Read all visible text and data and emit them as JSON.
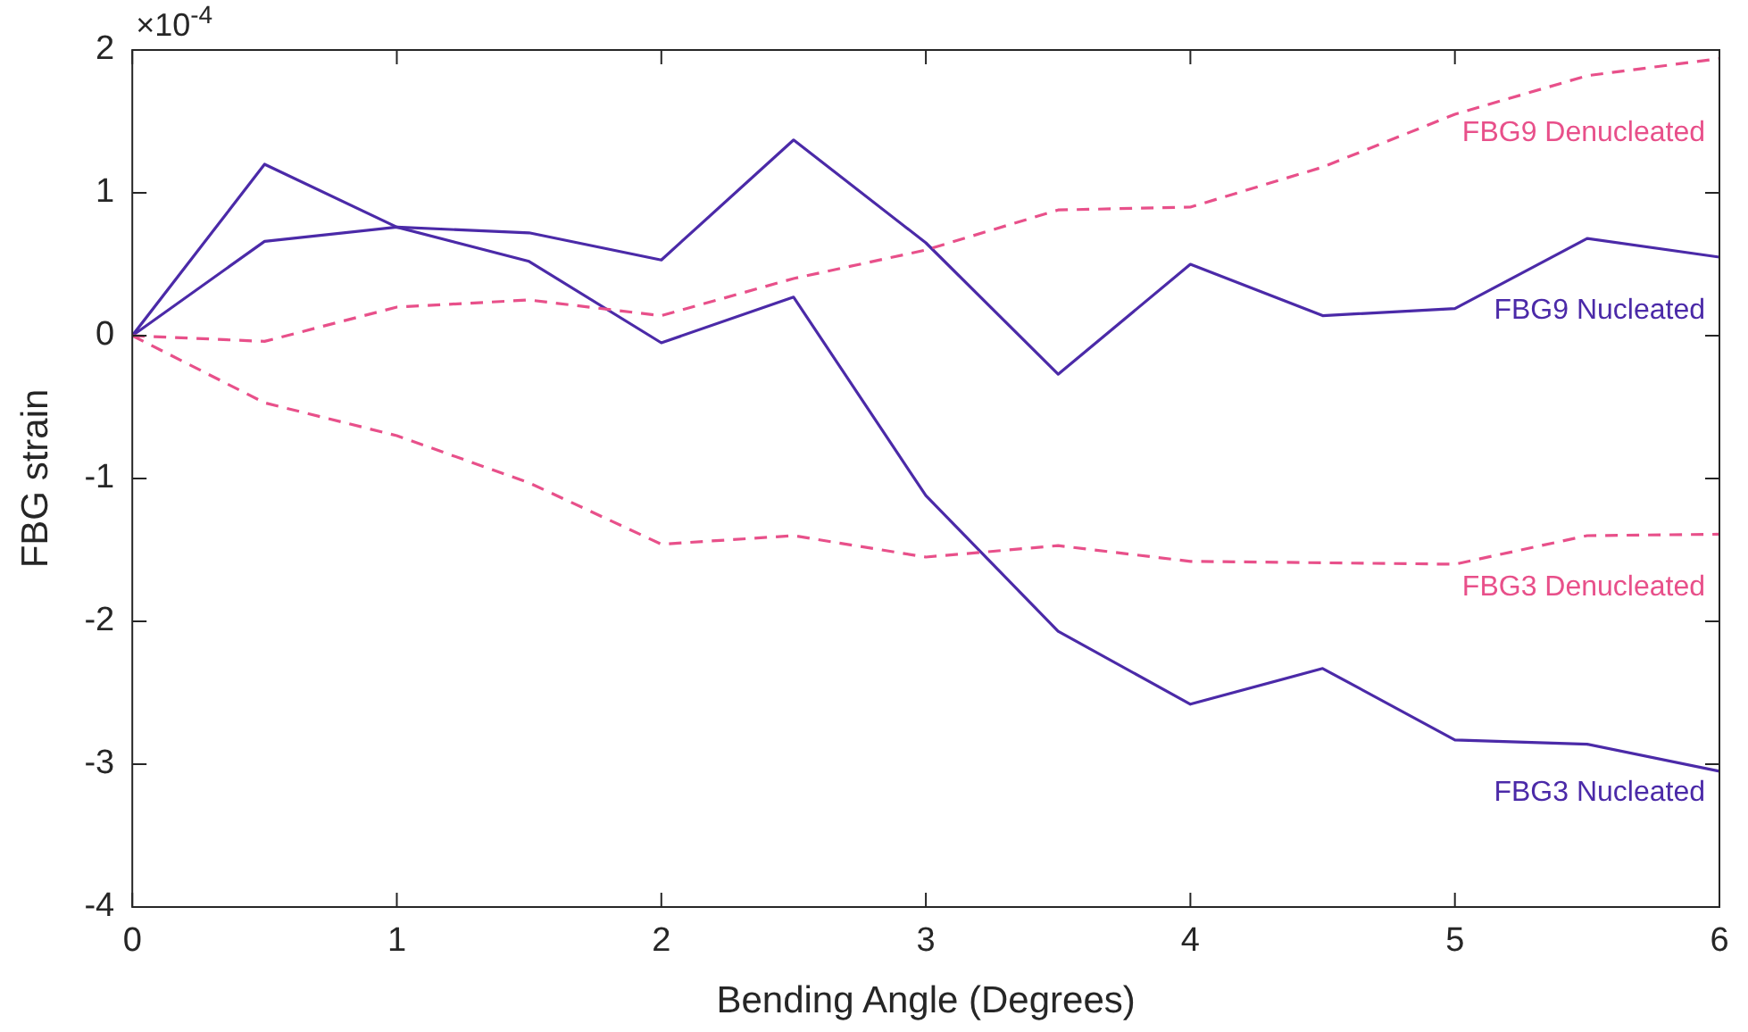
{
  "chart_data": {
    "type": "line",
    "xlabel": "Bending Angle (Degrees)",
    "ylabel": "FBG strain",
    "annotations": [
      "×10$^{-4}$"
    ],
    "x": [
      0,
      0.5,
      1,
      1.5,
      2,
      2.5,
      3,
      3.5,
      4,
      4.5,
      5,
      5.5,
      6
    ],
    "xlim": [
      0,
      6
    ],
    "xticks": [
      0,
      1,
      2,
      3,
      4,
      5,
      6
    ],
    "ylim": [
      -4,
      2
    ],
    "yticks": [
      -4,
      -3,
      -2,
      -1,
      0,
      1,
      2
    ],
    "grid": false,
    "legend": false,
    "marker": "none",
    "series": [
      {
        "name": "FBG9 Denucleated",
        "color": "#e8508a",
        "line_style": "dashed",
        "values": [
          0,
          -0.04,
          0.2,
          0.25,
          0.14,
          0.4,
          0.6,
          0.88,
          0.9,
          1.18,
          1.55,
          1.82,
          1.94
        ]
      },
      {
        "name": "FBG9 Nucleated",
        "color": "#4b2aa8",
        "line_style": "solid",
        "values": [
          0,
          0.66,
          0.76,
          0.72,
          0.53,
          1.37,
          0.65,
          -0.27,
          0.5,
          0.14,
          0.19,
          0.68,
          0.55
        ]
      },
      {
        "name": "FBG3 Denucleated",
        "color": "#e8508a",
        "line_style": "dashed",
        "values": [
          0,
          -0.47,
          -0.7,
          -1.03,
          -1.46,
          -1.4,
          -1.55,
          -1.47,
          -1.58,
          -1.59,
          -1.6,
          -1.4,
          -1.39
        ]
      },
      {
        "name": "FBG3 Nucleated",
        "color": "#4b2aa8",
        "line_style": "solid",
        "values": [
          0,
          1.2,
          0.76,
          0.52,
          -0.05,
          0.27,
          -1.12,
          -2.07,
          -2.58,
          -2.33,
          -2.83,
          -2.86,
          -3.05
        ]
      }
    ]
  }
}
